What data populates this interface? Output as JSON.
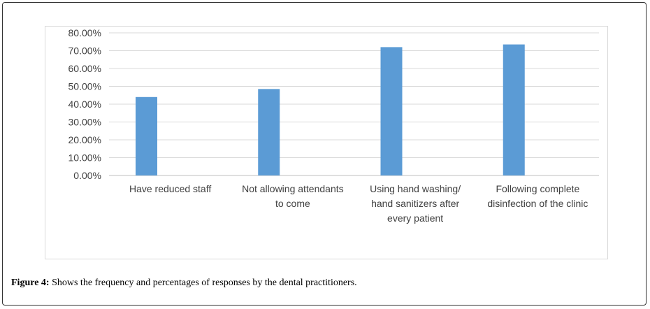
{
  "chart_data": {
    "type": "bar",
    "categories": [
      [
        "Have reduced staff"
      ],
      [
        "Not allowing attendants",
        "to come"
      ],
      [
        "Using hand washing/",
        "hand sanitizers after",
        "every patient"
      ],
      [
        "Following complete",
        "disinfection of the clinic"
      ]
    ],
    "values": [
      44.0,
      48.5,
      72.0,
      73.5
    ],
    "ylim": [
      0,
      80
    ],
    "yticks": [
      "0.00%",
      "10.00%",
      "20.00%",
      "30.00%",
      "40.00%",
      "50.00%",
      "60.00%",
      "70.00%",
      "80.00%"
    ],
    "bar_color": "#5b9bd5",
    "grid": true,
    "legend": "none"
  },
  "caption": {
    "label": "Figure 4:",
    "text": " Shows the frequency and percentages of responses by the dental practitioners."
  }
}
